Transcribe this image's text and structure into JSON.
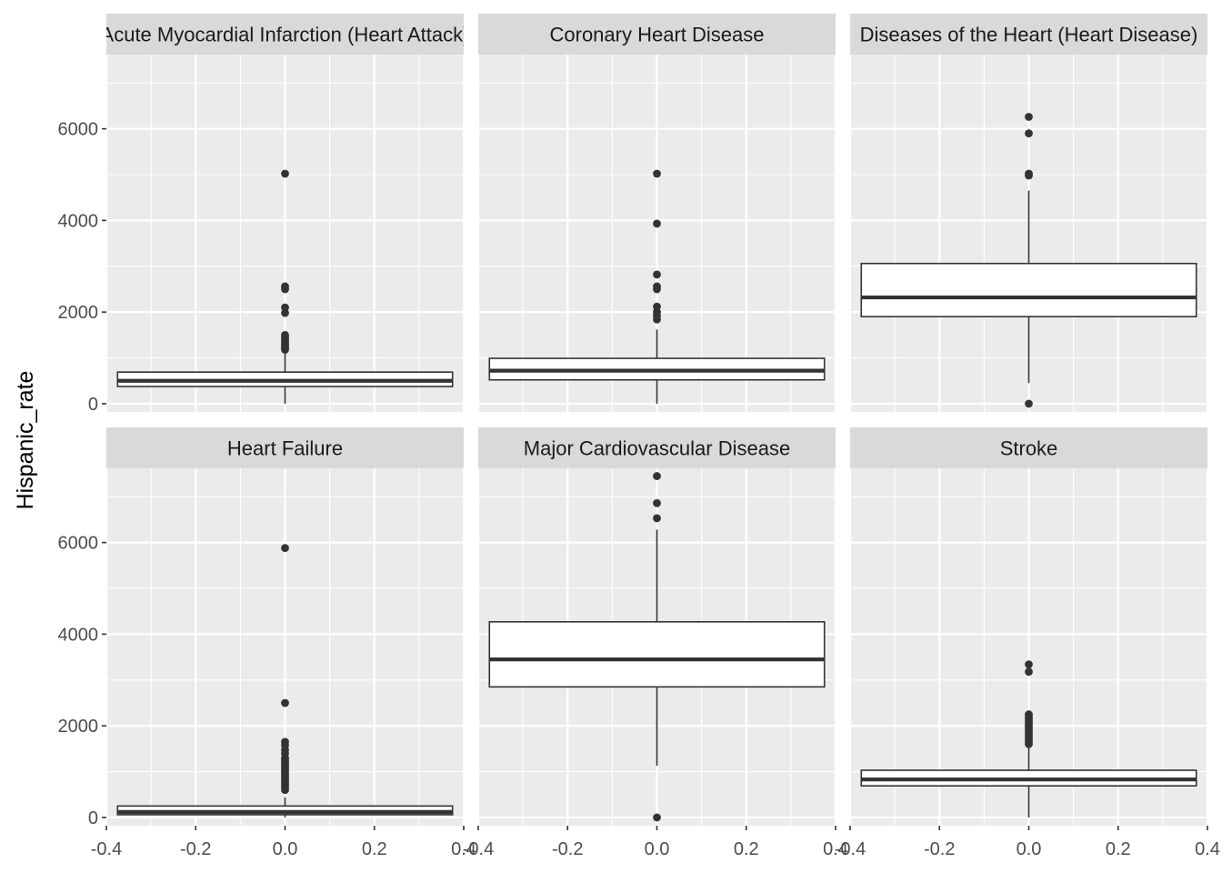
{
  "chart_data": {
    "type": "boxplot",
    "ylabel": "Hispanic_rate",
    "xlabel": "",
    "xlim": [
      -0.4,
      0.4
    ],
    "ylim": [
      -180,
      7620
    ],
    "x_ticks": [
      {
        "value": -0.4,
        "label": "-0.4"
      },
      {
        "value": -0.2,
        "label": "-0.2"
      },
      {
        "value": 0.0,
        "label": "0.0"
      },
      {
        "value": 0.2,
        "label": "0.2"
      },
      {
        "value": 0.4,
        "label": "0.4"
      }
    ],
    "y_ticks": [
      {
        "value": 0,
        "label": "0"
      },
      {
        "value": 2000,
        "label": "2000"
      },
      {
        "value": 4000,
        "label": "4000"
      },
      {
        "value": 6000,
        "label": "6000"
      }
    ],
    "grid": true,
    "colors": {
      "panel_bg": "#ebebeb",
      "strip_bg": "#d9d9d9",
      "grid": "#ffffff",
      "box_line": "#333333",
      "box_fill": "#ffffff"
    },
    "panels": [
      {
        "title": "Acute Myocardial Infarction (Heart Attack)",
        "q1": 375,
        "median": 500,
        "q3": 690,
        "whisker_low": 0,
        "whisker_high": 1120,
        "outliers": [
          1180,
          1220,
          1260,
          1300,
          1340,
          1380,
          1420,
          1460,
          1500,
          1980,
          2100,
          2500,
          2560,
          5020
        ]
      },
      {
        "title": "Coronary Heart Disease",
        "q1": 520,
        "median": 720,
        "q3": 990,
        "whisker_low": 0,
        "whisker_high": 1620,
        "outliers": [
          1840,
          1920,
          2000,
          2120,
          2500,
          2560,
          2820,
          3930,
          5020
        ]
      },
      {
        "title": "Diseases of the Heart (Heart Disease)",
        "q1": 1900,
        "median": 2320,
        "q3": 3060,
        "whisker_low": 450,
        "whisker_high": 4650,
        "outliers": [
          0,
          4980,
          5020,
          5900,
          6260
        ]
      },
      {
        "title": "Heart Failure",
        "q1": 60,
        "median": 120,
        "q3": 250,
        "whisker_low": 0,
        "whisker_high": 440,
        "outliers": [
          600,
          650,
          700,
          750,
          800,
          850,
          900,
          950,
          1000,
          1050,
          1100,
          1150,
          1200,
          1250,
          1300,
          1400,
          1480,
          1580,
          1650,
          2500,
          5880
        ]
      },
      {
        "title": "Major Cardiovascular Disease",
        "q1": 2850,
        "median": 3450,
        "q3": 4270,
        "whisker_low": 1130,
        "whisker_high": 6280,
        "outliers": [
          0,
          6530,
          6860,
          7450
        ]
      },
      {
        "title": "Stroke",
        "q1": 690,
        "median": 830,
        "q3": 1030,
        "whisker_low": 0,
        "whisker_high": 1540,
        "outliers": [
          1600,
          1650,
          1700,
          1750,
          1800,
          1850,
          1900,
          1950,
          2000,
          2050,
          2100,
          2150,
          2200,
          2250,
          3180,
          3340
        ]
      }
    ]
  }
}
